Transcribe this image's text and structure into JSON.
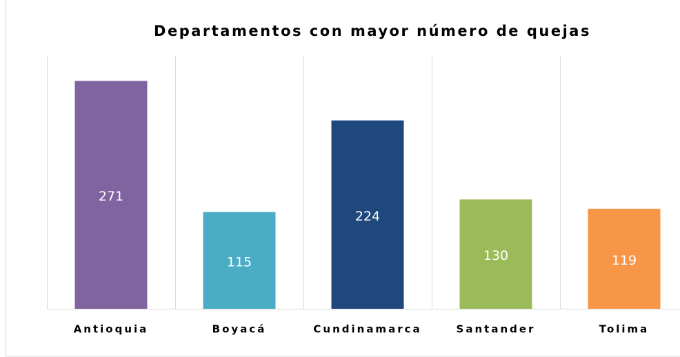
{
  "chart_data": {
    "type": "bar",
    "title": "Departamentos con mayor número de quejas",
    "categories": [
      "Antioquia",
      "Boyacá",
      "Cundinamarca",
      "Santander",
      "Tolima"
    ],
    "values": [
      271,
      115,
      224,
      130,
      119
    ],
    "colors": [
      "#8064a2",
      "#4bacc6",
      "#1f497d",
      "#9bbb59",
      "#f79646"
    ],
    "ylim": [
      0,
      300
    ]
  }
}
